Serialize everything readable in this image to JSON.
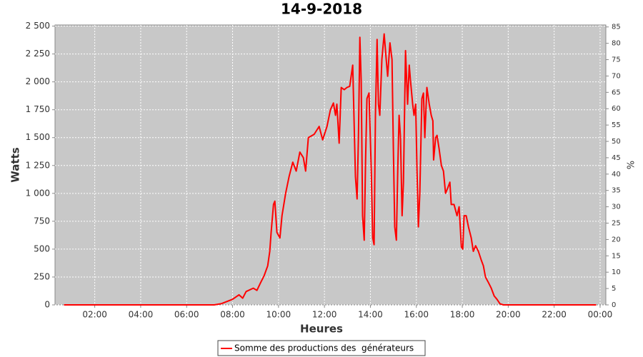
{
  "chart_data": {
    "type": "line",
    "title": "14-9-2018",
    "x_label": "Heures",
    "y_label": "Watts",
    "y2_label": "%",
    "xlim": [
      0.27,
      24.25
    ],
    "xticks": [
      {
        "value": 2,
        "label": "02:00"
      },
      {
        "value": 4,
        "label": "04:00"
      },
      {
        "value": 6,
        "label": "06:00"
      },
      {
        "value": 8,
        "label": "08:00"
      },
      {
        "value": 10,
        "label": "10:00"
      },
      {
        "value": 12,
        "label": "12:00"
      },
      {
        "value": 14,
        "label": "14:00"
      },
      {
        "value": 16,
        "label": "16:00"
      },
      {
        "value": 18,
        "label": "18:00"
      },
      {
        "value": 20,
        "label": "20:00"
      },
      {
        "value": 22,
        "label": "22:00"
      },
      {
        "value": 24,
        "label": "00:00"
      }
    ],
    "ylim": [
      0,
      2510
    ],
    "yticks": [
      0,
      250,
      500,
      750,
      {
        "value": 1000,
        "label": "1 000"
      },
      {
        "value": 1250,
        "label": "1 250"
      },
      {
        "value": 1500,
        "label": "1 500"
      },
      {
        "value": 1750,
        "label": "1 750"
      },
      {
        "value": 2000,
        "label": "2 000"
      },
      {
        "value": 2250,
        "label": "2 250"
      },
      {
        "value": 2500,
        "label": "2 500"
      }
    ],
    "y2lim": [
      0,
      85.6
    ],
    "y2ticks": [
      0,
      5,
      10,
      15,
      20,
      25,
      30,
      35,
      40,
      45,
      50,
      55,
      60,
      65,
      70,
      75,
      80,
      85
    ],
    "grid": true,
    "legend": "bottom",
    "x": [
      0.66,
      7.2,
      7.5,
      8.0,
      8.28,
      8.44,
      8.59,
      8.9,
      9.06,
      9.22,
      9.37,
      9.53,
      9.62,
      9.68,
      9.78,
      9.84,
      9.93,
      10.06,
      10.15,
      10.31,
      10.46,
      10.62,
      10.77,
      10.93,
      11.08,
      11.18,
      11.3,
      11.55,
      11.77,
      11.92,
      12.11,
      12.26,
      12.39,
      12.48,
      12.54,
      12.64,
      12.73,
      12.86,
      12.98,
      13.1,
      13.23,
      13.35,
      13.42,
      13.48,
      13.54,
      13.6,
      13.66,
      13.73,
      13.79,
      13.85,
      13.94,
      14.04,
      14.1,
      14.16,
      14.22,
      14.29,
      14.35,
      14.41,
      14.5,
      14.6,
      14.69,
      14.75,
      14.85,
      14.94,
      15.0,
      15.06,
      15.13,
      15.19,
      15.25,
      15.31,
      15.38,
      15.44,
      15.53,
      15.62,
      15.69,
      15.75,
      15.84,
      15.9,
      15.97,
      16.03,
      16.09,
      16.15,
      16.24,
      16.31,
      16.37,
      16.46,
      16.56,
      16.65,
      16.72,
      16.75,
      16.84,
      16.9,
      16.99,
      17.09,
      17.18,
      17.27,
      17.37,
      17.46,
      17.52,
      17.64,
      17.77,
      17.86,
      17.96,
      18.02,
      18.08,
      18.17,
      18.27,
      18.39,
      18.48,
      18.58,
      18.7,
      18.83,
      18.92,
      19.01,
      19.14,
      19.26,
      19.39,
      19.51,
      19.64,
      19.79,
      23.83
    ],
    "series": [
      {
        "name": "Somme des productions des  générateurs",
        "color": "#ff0000",
        "values": [
          0,
          0,
          10,
          50,
          90,
          60,
          120,
          150,
          130,
          200,
          260,
          350,
          480,
          650,
          900,
          930,
          650,
          600,
          800,
          1000,
          1150,
          1280,
          1200,
          1370,
          1320,
          1200,
          1500,
          1530,
          1600,
          1480,
          1600,
          1750,
          1810,
          1700,
          1800,
          1450,
          1950,
          1930,
          1950,
          1960,
          2150,
          1150,
          950,
          1500,
          2400,
          2000,
          800,
          580,
          1300,
          1850,
          1900,
          1200,
          600,
          540,
          1700,
          2380,
          1800,
          1700,
          2200,
          2430,
          2200,
          2050,
          2350,
          2200,
          1400,
          700,
          580,
          1200,
          1700,
          1500,
          800,
          1100,
          2280,
          1800,
          2150,
          2000,
          1800,
          1700,
          1800,
          1200,
          700,
          1000,
          1850,
          1900,
          1500,
          1950,
          1800,
          1700,
          1650,
          1300,
          1500,
          1520,
          1400,
          1250,
          1200,
          1000,
          1050,
          1100,
          900,
          900,
          800,
          880,
          520,
          500,
          800,
          800,
          700,
          600,
          480,
          530,
          480,
          400,
          350,
          250,
          200,
          150,
          80,
          50,
          10,
          0,
          0
        ]
      }
    ]
  }
}
